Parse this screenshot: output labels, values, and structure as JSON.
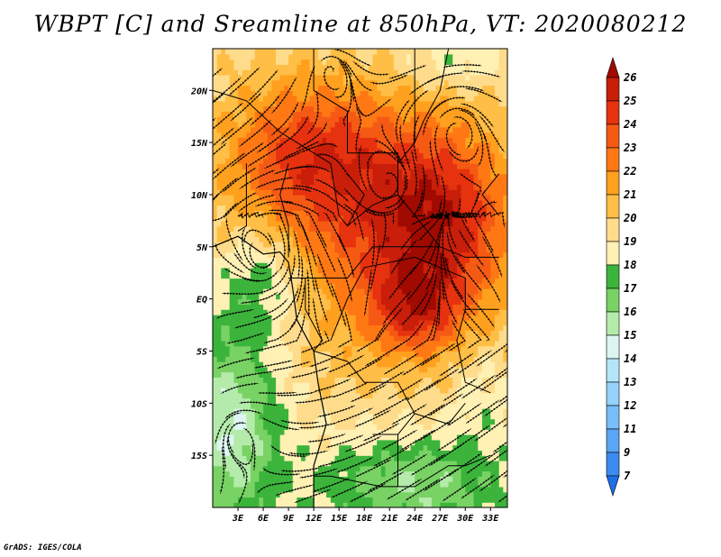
{
  "title": "WBPT [C] and Sreamline at 850hPa, VT: 2020080212",
  "footer": "GrADS: IGES/COLA",
  "map": {
    "lon_range": [
      0,
      35
    ],
    "lat_range": [
      -20,
      24
    ],
    "lon_ticks": [
      {
        "value": 3,
        "label": "3E"
      },
      {
        "value": 6,
        "label": "6E"
      },
      {
        "value": 9,
        "label": "9E"
      },
      {
        "value": 12,
        "label": "12E"
      },
      {
        "value": 15,
        "label": "15E"
      },
      {
        "value": 18,
        "label": "18E"
      },
      {
        "value": 21,
        "label": "21E"
      },
      {
        "value": 24,
        "label": "24E"
      },
      {
        "value": 27,
        "label": "27E"
      },
      {
        "value": 30,
        "label": "30E"
      },
      {
        "value": 33,
        "label": "33E"
      }
    ],
    "lat_ticks": [
      {
        "value": 20,
        "label": "20N"
      },
      {
        "value": 15,
        "label": "15N"
      },
      {
        "value": 10,
        "label": "10N"
      },
      {
        "value": 5,
        "label": "5N"
      },
      {
        "value": 0,
        "label": "EQ"
      },
      {
        "value": -5,
        "label": "5S"
      },
      {
        "value": -10,
        "label": "10S"
      },
      {
        "value": -15,
        "label": "15S"
      }
    ]
  },
  "colorbar": {
    "labels": [
      "7",
      "9",
      "11",
      "12",
      "13",
      "14",
      "15",
      "16",
      "17",
      "18",
      "19",
      "20",
      "21",
      "22",
      "23",
      "24",
      "25",
      "26"
    ],
    "colors": [
      "#1e6ee6",
      "#3c8cf0",
      "#5aa5f5",
      "#78bef8",
      "#96d2fa",
      "#b4e6fa",
      "#dcf5f0",
      "#b4ebaa",
      "#78d264",
      "#3cb43c",
      "#fff0b4",
      "#ffdc8c",
      "#ffbe46",
      "#ffa01e",
      "#ff7814",
      "#f55a14",
      "#e6320f",
      "#c81e0a",
      "#a00a00"
    ]
  }
}
